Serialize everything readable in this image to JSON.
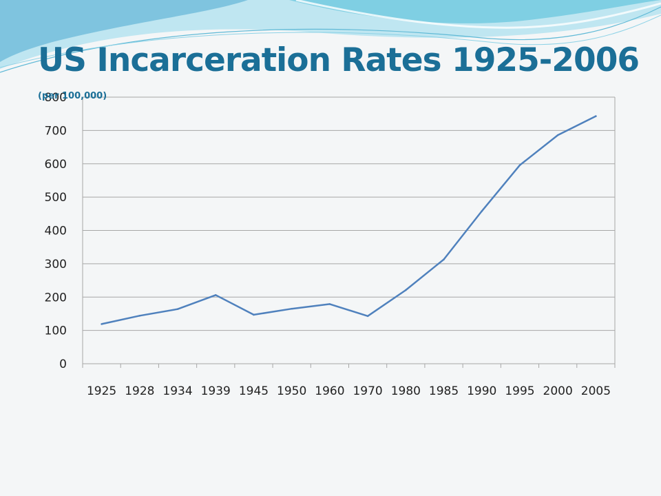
{
  "slide": {
    "title": "US Incarceration Rates 1925-2006",
    "subtitle": "(per 100,000)",
    "colors": {
      "title": "#1b6f97",
      "line": "#4f81bd",
      "grid": "#a6a6a6",
      "background": "#f4f6f7",
      "wave_light": "#bfe6f1",
      "wave_mid": "#7fcfe3",
      "wave_dark": "#4aa8cf"
    }
  },
  "chart_data": {
    "type": "line",
    "title": "",
    "xlabel": "",
    "ylabel": "",
    "categories": [
      "1925",
      "1928",
      "1934",
      "1939",
      "1945",
      "1950",
      "1960",
      "1970",
      "1980",
      "1985",
      "1990",
      "1995",
      "2000",
      "2005"
    ],
    "series": [
      {
        "values": [
          119,
          144,
          164,
          206,
          147,
          165,
          179,
          143,
          221,
          313,
          458,
          596,
          686,
          743
        ]
      }
    ],
    "ylim": [
      0,
      800
    ],
    "yticks": [
      "0",
      "100",
      "200",
      "300",
      "400",
      "500",
      "600",
      "700",
      "800"
    ],
    "grid": true,
    "legend": "none"
  }
}
